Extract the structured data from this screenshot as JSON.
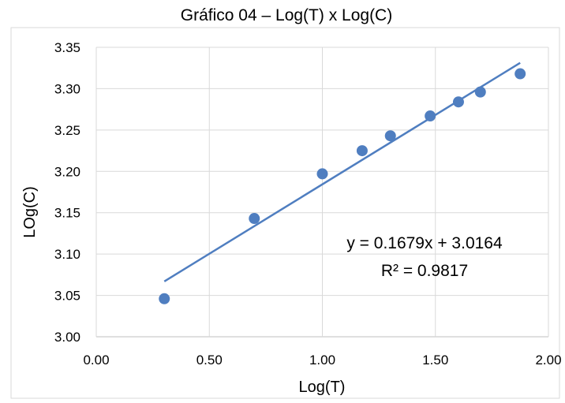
{
  "chart_data": {
    "type": "scatter",
    "title": "Gráfico 04 – Log(T) x Log(C)",
    "xlabel": "Log(T)",
    "ylabel": "LOg(C)",
    "xlim": [
      0,
      2
    ],
    "ylim": [
      3.0,
      3.35
    ],
    "x_ticks": [
      "0.00",
      "0.50",
      "1.00",
      "1.50",
      "2.00"
    ],
    "y_ticks": [
      "3.00",
      "3.05",
      "3.10",
      "3.15",
      "3.20",
      "3.25",
      "3.30",
      "3.35"
    ],
    "grid": true,
    "series": [
      {
        "x": [
          0.301,
          0.699,
          1.0,
          1.176,
          1.301,
          1.477,
          1.602,
          1.699,
          1.875
        ],
        "y": [
          3.046,
          3.143,
          3.197,
          3.225,
          3.243,
          3.267,
          3.284,
          3.296,
          3.318
        ],
        "color": "#4f7ec0"
      }
    ],
    "trendline": {
      "type": "linear",
      "slope": 0.1679,
      "intercept": 3.0164,
      "x_range": [
        0.301,
        1.875
      ],
      "color": "#4f7ec0"
    },
    "annotations": {
      "equation": "y = 0.1679x + 3.0164",
      "r_squared": "R² = 0.9817"
    }
  }
}
